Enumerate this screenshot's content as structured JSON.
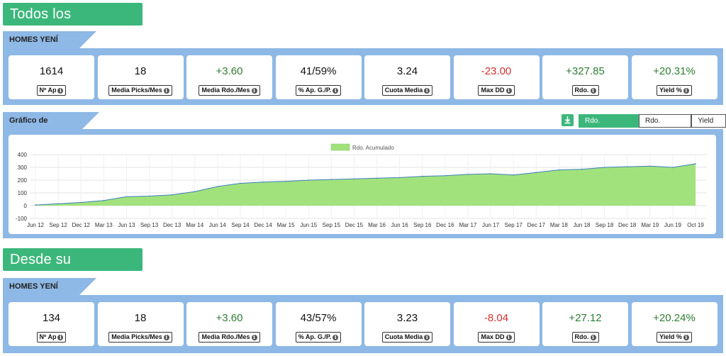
{
  "sections": {
    "all_title": "Todos los resultados",
    "pub_title": "Desde su publicación"
  },
  "tipster_all": "HOMES YENÍ SHARE",
  "tipster_pub": "HOMES YENÍ SHARE",
  "stats_all": [
    {
      "value": "1614",
      "label": "Nº Ap",
      "tone": "neu"
    },
    {
      "value": "18",
      "label": "Media Picks/Mes",
      "tone": "neu"
    },
    {
      "value": "+3.60",
      "label": "Media Rdo./Mes",
      "tone": "pos"
    },
    {
      "value": "41/59%",
      "label": "% Ap. G./P.",
      "tone": "neu"
    },
    {
      "value": "3.24",
      "label": "Cuota Media",
      "tone": "neu"
    },
    {
      "value": "-23.00",
      "label": "Max DD",
      "tone": "neg"
    },
    {
      "value": "+327.85",
      "label": "Rdo.",
      "tone": "pos"
    },
    {
      "value": "+20.31%",
      "label": "Yield %",
      "tone": "pos"
    }
  ],
  "stats_pub": [
    {
      "value": "134",
      "label": "Nº Ap",
      "tone": "neu"
    },
    {
      "value": "18",
      "label": "Media Picks/Mes",
      "tone": "neu"
    },
    {
      "value": "+3.60",
      "label": "Media Rdo./Mes",
      "tone": "pos"
    },
    {
      "value": "43/57%",
      "label": "% Ap. G./P.",
      "tone": "neu"
    },
    {
      "value": "3.23",
      "label": "Cuota Media",
      "tone": "neu"
    },
    {
      "value": "-8.04",
      "label": "Max DD",
      "tone": "neg"
    },
    {
      "value": "+27.12",
      "label": "Rdo.",
      "tone": "pos"
    },
    {
      "value": "+20.24%",
      "label": "Yield %",
      "tone": "pos"
    }
  ],
  "graph": {
    "label": "Gráfico de Resultados",
    "buttons": [
      "Rdo. Acumulado",
      "Rdo. Mensual",
      "Yield %"
    ],
    "active": 0,
    "download_icon": "download-icon"
  },
  "colors": {
    "green": "#3cb77b",
    "panel_blue": "#8eb8e5",
    "area_fill": "#a2e27c",
    "area_line": "#3e7fbf"
  },
  "chart_data": {
    "type": "area",
    "legend": [
      "Rdo. Acumulado"
    ],
    "legend_position": "top-center",
    "grid": true,
    "ylim": [
      -100,
      400
    ],
    "yticks": [
      "400",
      "300",
      "200",
      "100",
      "0",
      "-100"
    ],
    "xticks": [
      "Jun 12",
      "Sep 12",
      "Dec 12",
      "Mar 13",
      "Jun 13",
      "Sep 13",
      "Dec 13",
      "Mar 14",
      "Jun 14",
      "Sep 14",
      "Dec 14",
      "Mar 15",
      "Jun 15",
      "Sep 15",
      "Dec 15",
      "Mar 16",
      "Jun 16",
      "Sep 16",
      "Dec 16",
      "Mar 17",
      "Jun 17",
      "Sep 17",
      "Dec 17",
      "Mar 18",
      "Jun 18",
      "Sep 18",
      "Dec 18",
      "Mar 19",
      "Jun 19",
      "Oct 19"
    ],
    "series": [
      {
        "name": "Rdo. Acumulado",
        "x": [
          "Jun 12",
          "Sep 12",
          "Dec 12",
          "Mar 13",
          "Jun 13",
          "Sep 13",
          "Dec 13",
          "Mar 14",
          "Jun 14",
          "Sep 14",
          "Dec 14",
          "Mar 15",
          "Jun 15",
          "Sep 15",
          "Dec 15",
          "Mar 16",
          "Jun 16",
          "Sep 16",
          "Dec 16",
          "Mar 17",
          "Jun 17",
          "Sep 17",
          "Dec 17",
          "Mar 18",
          "Jun 18",
          "Sep 18",
          "Dec 18",
          "Mar 19",
          "Jun 19",
          "Oct 19"
        ],
        "values": [
          5,
          15,
          25,
          40,
          70,
          75,
          85,
          110,
          150,
          175,
          185,
          190,
          200,
          205,
          210,
          215,
          220,
          230,
          235,
          245,
          250,
          240,
          260,
          280,
          285,
          300,
          305,
          310,
          300,
          328
        ]
      }
    ]
  }
}
